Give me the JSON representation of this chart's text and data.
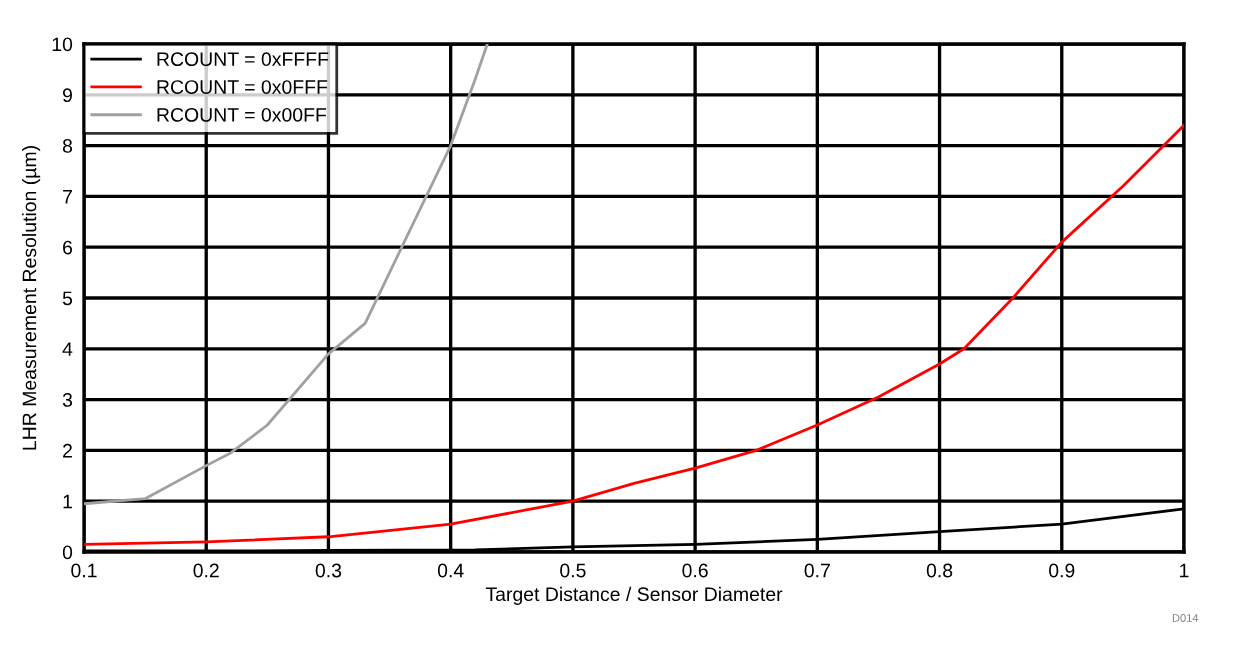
{
  "chart_data": {
    "type": "line",
    "xlabel": "Target Distance / Sensor Diameter",
    "ylabel": "LHR Measurement Resolution (µm)",
    "xlim": [
      0.1,
      1
    ],
    "xticks": [
      0.1,
      0.2,
      0.3,
      0.4,
      0.5,
      0.6,
      0.7,
      0.8,
      0.9,
      1
    ],
    "ylim": [
      0,
      10
    ],
    "yticks": [
      0,
      1,
      2,
      3,
      4,
      5,
      6,
      7,
      8,
      9,
      10
    ],
    "grid": true,
    "legend": "top left",
    "marker": "none",
    "line_style": "solid",
    "annotations": [
      "D014"
    ],
    "series": [
      {
        "name": "RCOUNT = 0xFFFF",
        "color": "#000000",
        "x": [
          0.1,
          0.2,
          0.3,
          0.42,
          0.5,
          0.6,
          0.7,
          0.8,
          0.9,
          1.0
        ],
        "values": [
          0.02,
          0.02,
          0.03,
          0.04,
          0.1,
          0.15,
          0.25,
          0.4,
          0.55,
          0.85
        ]
      },
      {
        "name": "RCOUNT = 0x0FFF",
        "color": "#ff0000",
        "x": [
          0.1,
          0.2,
          0.3,
          0.4,
          0.5,
          0.55,
          0.6,
          0.65,
          0.7,
          0.75,
          0.8,
          0.82,
          0.86,
          0.9,
          0.95,
          1.0
        ],
        "values": [
          0.15,
          0.2,
          0.3,
          0.55,
          1.0,
          1.35,
          1.65,
          2.0,
          2.5,
          3.05,
          3.7,
          4.0,
          5.0,
          6.1,
          7.2,
          8.4
        ]
      },
      {
        "name": "RCOUNT = 0x00FF",
        "color": "#a0a0a0",
        "x": [
          0.1,
          0.15,
          0.2,
          0.22,
          0.25,
          0.3,
          0.33,
          0.36,
          0.4,
          0.42,
          0.43
        ],
        "values": [
          0.95,
          1.05,
          1.7,
          1.95,
          2.5,
          3.9,
          4.5,
          6.0,
          8.0,
          9.3,
          10.0
        ]
      }
    ]
  }
}
